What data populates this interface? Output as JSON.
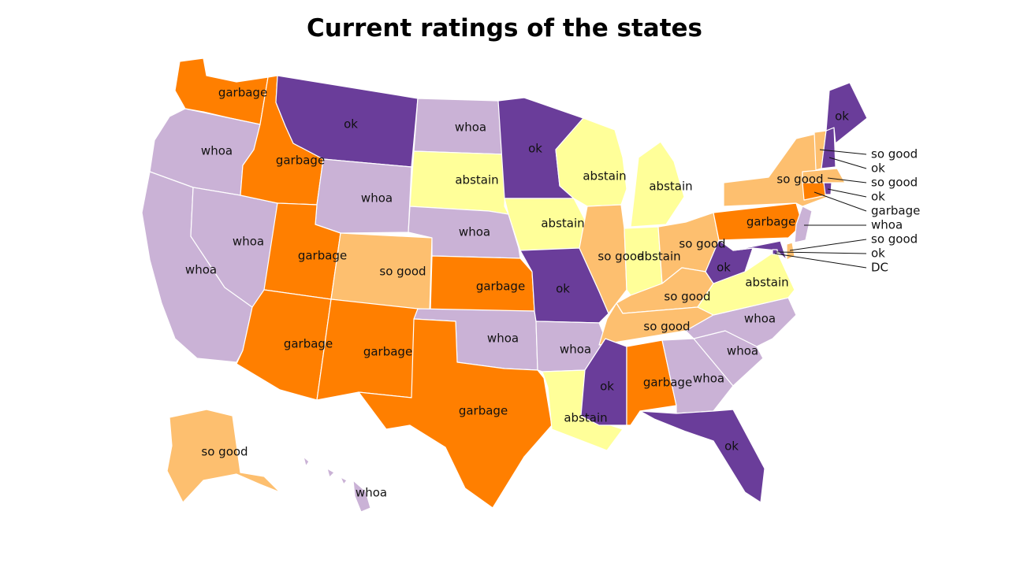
{
  "title": "Current ratings of the states",
  "colors": {
    "garbage": "#ff7f00",
    "ok": "#6a3d9a",
    "whoa": "#cab2d6",
    "so good": "#fdbf6f",
    "abstain": "#ffff99"
  },
  "states": [
    {
      "code": "WA",
      "rating": "garbage"
    },
    {
      "code": "OR",
      "rating": "whoa"
    },
    {
      "code": "CA",
      "rating": "whoa"
    },
    {
      "code": "NV",
      "rating": "whoa"
    },
    {
      "code": "ID",
      "rating": "garbage"
    },
    {
      "code": "MT",
      "rating": "ok"
    },
    {
      "code": "WY",
      "rating": "whoa"
    },
    {
      "code": "UT",
      "rating": "garbage"
    },
    {
      "code": "AZ",
      "rating": "garbage"
    },
    {
      "code": "CO",
      "rating": "so good"
    },
    {
      "code": "NM",
      "rating": "garbage"
    },
    {
      "code": "ND",
      "rating": "whoa"
    },
    {
      "code": "SD",
      "rating": "abstain"
    },
    {
      "code": "NE",
      "rating": "whoa"
    },
    {
      "code": "KS",
      "rating": "garbage"
    },
    {
      "code": "OK",
      "rating": "whoa"
    },
    {
      "code": "TX",
      "rating": "garbage"
    },
    {
      "code": "MN",
      "rating": "ok"
    },
    {
      "code": "IA",
      "rating": "abstain"
    },
    {
      "code": "MO",
      "rating": "ok"
    },
    {
      "code": "AR",
      "rating": "whoa"
    },
    {
      "code": "LA",
      "rating": "abstain"
    },
    {
      "code": "WI",
      "rating": "abstain"
    },
    {
      "code": "IL",
      "rating": "so good"
    },
    {
      "code": "MI",
      "rating": "abstain"
    },
    {
      "code": "IN",
      "rating": "abstain"
    },
    {
      "code": "OH",
      "rating": "so good"
    },
    {
      "code": "KY",
      "rating": "so good"
    },
    {
      "code": "TN",
      "rating": "so good"
    },
    {
      "code": "MS",
      "rating": "ok"
    },
    {
      "code": "AL",
      "rating": "garbage"
    },
    {
      "code": "GA",
      "rating": "whoa"
    },
    {
      "code": "FL",
      "rating": "ok"
    },
    {
      "code": "SC",
      "rating": "whoa"
    },
    {
      "code": "NC",
      "rating": "whoa"
    },
    {
      "code": "VA",
      "rating": "abstain"
    },
    {
      "code": "WV",
      "rating": "ok"
    },
    {
      "code": "MD",
      "rating": "ok"
    },
    {
      "code": "DE",
      "rating": "so good"
    },
    {
      "code": "DC",
      "rating": "ok"
    },
    {
      "code": "PA",
      "rating": "garbage"
    },
    {
      "code": "NJ",
      "rating": "whoa"
    },
    {
      "code": "NY",
      "rating": "so good"
    },
    {
      "code": "CT",
      "rating": "garbage"
    },
    {
      "code": "RI",
      "rating": "ok"
    },
    {
      "code": "MA",
      "rating": "so good"
    },
    {
      "code": "VT",
      "rating": "so good"
    },
    {
      "code": "NH",
      "rating": "ok"
    },
    {
      "code": "ME",
      "rating": "ok"
    },
    {
      "code": "AK",
      "rating": "so good"
    },
    {
      "code": "HI",
      "rating": "whoa"
    }
  ],
  "callouts": [
    "so good",
    "ok",
    "so good",
    "ok",
    "garbage",
    "whoa",
    "so good",
    "ok",
    "DC"
  ]
}
